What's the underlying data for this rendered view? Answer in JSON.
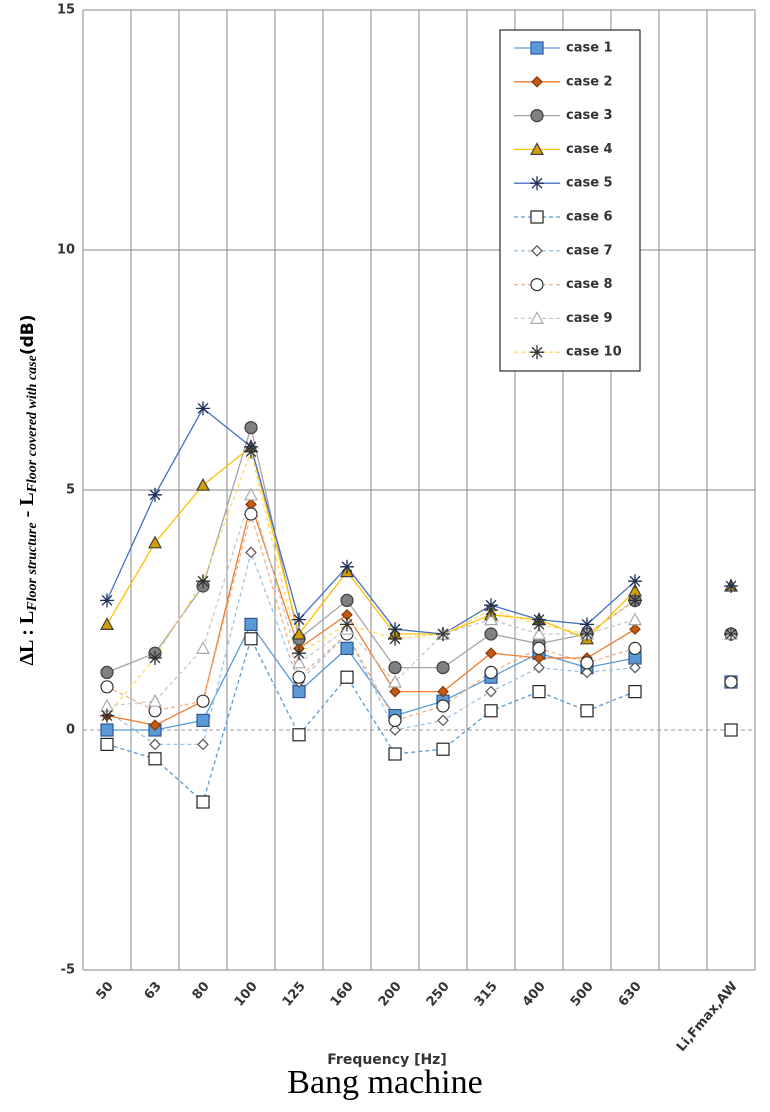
{
  "chart_data": {
    "type": "line",
    "title": "Bang machine",
    "x_label": "Frequency [Hz]",
    "y_label_parts": [
      "ΔL : L",
      "Floor structure",
      " - L",
      "Floor covered with case",
      "(dB)"
    ],
    "categories": [
      "50",
      "63",
      "80",
      "100",
      "125",
      "160",
      "200",
      "250",
      "315",
      "400",
      "500",
      "630",
      null,
      "Li,Fmax,AW"
    ],
    "ylim": [
      -5,
      15
    ],
    "yticks": [
      -5,
      0,
      5,
      10,
      15
    ],
    "grid": true,
    "zero_line": true,
    "legend": "upper right",
    "series": [
      {
        "name": "case 1",
        "color": "#5b9bd5",
        "marker": "square",
        "marker_fill": "#5b9bd5",
        "marker_edge": "#2f5597",
        "dashed": false,
        "values": [
          0,
          0,
          0.2,
          2.2,
          0.8,
          1.7,
          0.3,
          0.6,
          1.1,
          1.6,
          1.3,
          1.5,
          null,
          1
        ]
      },
      {
        "name": "case 2",
        "color": "#ed7d31",
        "marker": "diamond",
        "marker_fill": "#c55a11",
        "marker_edge": "#843c0c",
        "dashed": false,
        "values": [
          0.3,
          0.1,
          0.6,
          4.7,
          1.7,
          2.4,
          0.8,
          0.8,
          1.6,
          1.5,
          1.5,
          2.1,
          null,
          2
        ]
      },
      {
        "name": "case 3",
        "color": "#a5a5a5",
        "marker": "circle",
        "marker_fill": "#808080",
        "marker_edge": "#404040",
        "dashed": false,
        "values": [
          1.2,
          1.6,
          3.0,
          6.3,
          1.9,
          2.7,
          1.3,
          1.3,
          2.0,
          1.8,
          2.0,
          2.7,
          null,
          2
        ]
      },
      {
        "name": "case 4",
        "color": "#ffc000",
        "marker": "triangle",
        "marker_fill": "#d4a000",
        "marker_edge": "#404040",
        "dashed": false,
        "values": [
          2.2,
          3.9,
          5.1,
          5.9,
          2.0,
          3.3,
          2.0,
          2.0,
          2.4,
          2.3,
          1.9,
          2.9,
          null,
          3
        ]
      },
      {
        "name": "case 5",
        "color": "#4472c4",
        "marker": "star",
        "marker_fill": "#1f2f5a",
        "marker_edge": "#1f2f5a",
        "dashed": false,
        "values": [
          2.7,
          4.9,
          6.7,
          5.9,
          2.3,
          3.4,
          2.1,
          2.0,
          2.6,
          2.3,
          2.2,
          3.1,
          null,
          3
        ]
      },
      {
        "name": "case 6",
        "color": "#5b9bd5",
        "marker": "square",
        "marker_fill": "#ffffff",
        "marker_edge": "#222222",
        "dashed": true,
        "values": [
          -0.3,
          -0.6,
          -1.5,
          1.9,
          -0.1,
          1.1,
          -0.5,
          -0.4,
          0.4,
          0.8,
          0.4,
          0.8,
          null,
          0
        ]
      },
      {
        "name": "case 7",
        "color": "#9dc3e6",
        "marker": "diamond",
        "marker_fill": "#ffffff",
        "marker_edge": "#555555",
        "dashed": true,
        "values": [
          0.4,
          -0.3,
          -0.3,
          3.7,
          1.0,
          2.0,
          0.0,
          0.2,
          0.8,
          1.3,
          1.2,
          1.3,
          null,
          1
        ]
      },
      {
        "name": "case 8",
        "color": "#f4b183",
        "marker": "circle",
        "marker_fill": "#ffffff",
        "marker_edge": "#333333",
        "dashed": true,
        "values": [
          0.9,
          0.4,
          0.6,
          4.5,
          1.1,
          2.0,
          0.2,
          0.5,
          1.2,
          1.7,
          1.4,
          1.7,
          null,
          1
        ]
      },
      {
        "name": "case 9",
        "color": "#c9c9c9",
        "marker": "triangle",
        "marker_fill": "#ffffff",
        "marker_edge": "#aaaaaa",
        "dashed": true,
        "values": [
          0.5,
          0.6,
          1.7,
          4.9,
          1.4,
          2.1,
          1.0,
          2.0,
          2.3,
          2.0,
          2.0,
          2.3,
          null,
          2
        ]
      },
      {
        "name": "case 10",
        "color": "#ffd966",
        "marker": "star",
        "marker_fill": "#333333",
        "marker_edge": "#333333",
        "dashed": true,
        "values": [
          0.3,
          1.5,
          3.1,
          5.8,
          1.6,
          2.2,
          1.9,
          2.0,
          2.5,
          2.2,
          2.0,
          2.7,
          null,
          2
        ]
      }
    ]
  }
}
